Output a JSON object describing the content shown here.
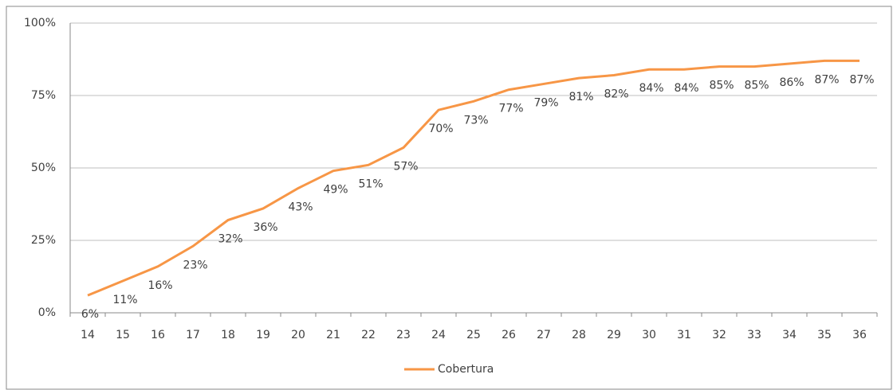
{
  "chart_data": {
    "type": "line",
    "categories": [
      "14",
      "15",
      "16",
      "17",
      "18",
      "19",
      "20",
      "21",
      "22",
      "23",
      "24",
      "25",
      "26",
      "27",
      "28",
      "29",
      "30",
      "31",
      "32",
      "33",
      "34",
      "35",
      "36"
    ],
    "series": [
      {
        "name": "Cobertura",
        "color": "#f79646",
        "values": [
          6,
          11,
          16,
          23,
          32,
          36,
          43,
          49,
          51,
          57,
          70,
          73,
          77,
          79,
          81,
          82,
          84,
          84,
          85,
          85,
          86,
          87,
          87
        ],
        "value_labels": [
          "6%",
          "11%",
          "16%",
          "23%",
          "32%",
          "36%",
          "43%",
          "49%",
          "51%",
          "57%",
          "70%",
          "73%",
          "77%",
          "79%",
          "81%",
          "82%",
          "84%",
          "84%",
          "85%",
          "85%",
          "86%",
          "87%",
          "87%"
        ]
      }
    ],
    "ylim": [
      0,
      100
    ],
    "yticks": [
      {
        "value": 0,
        "label": "0%"
      },
      {
        "value": 25,
        "label": "25%"
      },
      {
        "value": 50,
        "label": "50%"
      },
      {
        "value": 75,
        "label": "75%"
      },
      {
        "value": 100,
        "label": "100%"
      }
    ],
    "grid": true,
    "legend": "bottom"
  }
}
